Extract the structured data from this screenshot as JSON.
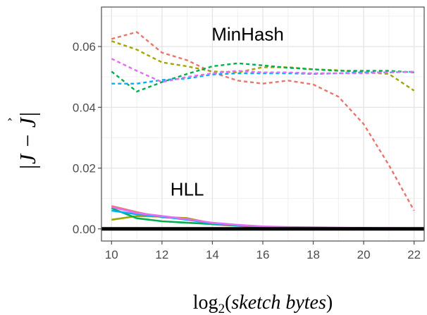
{
  "chart_data": {
    "type": "line",
    "x": [
      10,
      11,
      12,
      13,
      14,
      15,
      16,
      17,
      18,
      19,
      20,
      21,
      22
    ],
    "xlim": [
      9.6,
      22.4
    ],
    "ylim": [
      -0.004,
      0.073
    ],
    "xticks": [
      10,
      12,
      14,
      16,
      18,
      20,
      22
    ],
    "yticks": [
      0.0,
      0.02,
      0.04,
      0.06
    ],
    "ytick_labels": [
      "0.00",
      "0.02",
      "0.04",
      "0.06"
    ],
    "xlabel": {
      "prefix": "log",
      "subscript": "2",
      "open": "(",
      "italic": "sketch bytes",
      "close": ")"
    },
    "ylabel": {
      "text": "|J − J|",
      "hat": "ˆ"
    },
    "grid": true,
    "legend": "none",
    "annotations": [
      {
        "text": "MinHash",
        "x": 15.4,
        "y": 0.062
      },
      {
        "text": "HLL",
        "x": 13.0,
        "y": 0.011
      }
    ],
    "baseline": {
      "y": 0.0,
      "color": "#000000"
    },
    "series": [
      {
        "group": "MinHash",
        "color": "#e8766d",
        "dash": true,
        "values": [
          0.0625,
          0.0648,
          0.058,
          0.0555,
          0.0515,
          0.0488,
          0.0478,
          0.0488,
          0.0475,
          0.0435,
          0.0345,
          0.021,
          0.006
        ]
      },
      {
        "group": "MinHash",
        "color": "#a3a500",
        "dash": true,
        "values": [
          0.0618,
          0.059,
          0.0548,
          0.0535,
          0.0518,
          0.0515,
          0.0532,
          0.0532,
          0.0525,
          0.0522,
          0.0515,
          0.051,
          0.0455
        ]
      },
      {
        "group": "MinHash",
        "color": "#00b050",
        "dash": true,
        "values": [
          0.0518,
          0.0452,
          0.0483,
          0.051,
          0.0535,
          0.0545,
          0.0538,
          0.053,
          0.0525,
          0.052,
          0.052,
          0.052,
          0.0515
        ]
      },
      {
        "group": "MinHash",
        "color": "#00b0f6",
        "dash": true,
        "values": [
          0.0478,
          0.0478,
          0.049,
          0.0495,
          0.0508,
          0.0512,
          0.0512,
          0.0512,
          0.051,
          0.0512,
          0.0515,
          0.0515,
          0.0517
        ]
      },
      {
        "group": "MinHash",
        "color": "#e76bf3",
        "dash": true,
        "values": [
          0.056,
          0.052,
          0.0483,
          0.05,
          0.0512,
          0.052,
          0.0515,
          0.0515,
          0.0512,
          0.0512,
          0.0512,
          0.0515,
          0.0517
        ]
      },
      {
        "group": "HLL",
        "color": "#e8766d",
        "dash": false,
        "values": [
          0.0075,
          0.0055,
          0.0038,
          0.0035,
          0.0015,
          0.001,
          0.0005,
          0.0004,
          0.0003,
          0.0002,
          0.0002,
          0.0002,
          0.0002
        ]
      },
      {
        "group": "HLL",
        "color": "#a3a500",
        "dash": false,
        "values": [
          0.003,
          0.0042,
          0.004,
          0.0035,
          0.0018,
          0.0012,
          0.0006,
          0.0005,
          0.0004,
          0.0003,
          0.0002,
          0.0002,
          0.0002
        ]
      },
      {
        "group": "HLL",
        "color": "#00b050",
        "dash": false,
        "values": [
          0.0068,
          0.0035,
          0.0025,
          0.002,
          0.0016,
          0.0011,
          0.0006,
          0.0005,
          0.0004,
          0.0003,
          0.0003,
          0.0002,
          0.0002
        ]
      },
      {
        "group": "HLL",
        "color": "#00b0f6",
        "dash": false,
        "values": [
          0.006,
          0.0048,
          0.004,
          0.003,
          0.0018,
          0.0012,
          0.0007,
          0.0005,
          0.0004,
          0.0003,
          0.0003,
          0.0002,
          0.0002
        ]
      },
      {
        "group": "HLL",
        "color": "#e76bf3",
        "dash": false,
        "values": [
          0.0072,
          0.0052,
          0.0042,
          0.0032,
          0.002,
          0.0013,
          0.0008,
          0.0006,
          0.0005,
          0.0004,
          0.0003,
          0.0003,
          0.0002
        ]
      }
    ]
  }
}
